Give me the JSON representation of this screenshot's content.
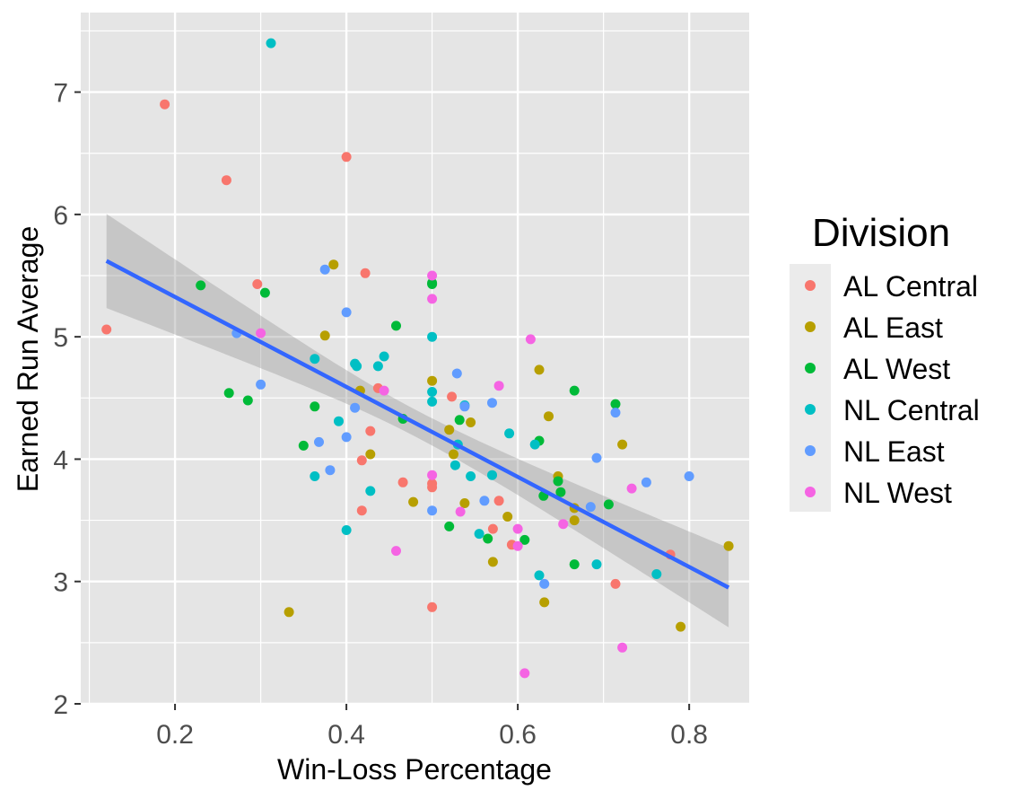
{
  "chart_data": {
    "type": "scatter",
    "xlabel": "Win-Loss Percentage",
    "ylabel": "Earned Run Average",
    "xlim": [
      0.09,
      0.87
    ],
    "ylim": [
      2.0,
      7.65
    ],
    "x_ticks": [
      0.2,
      0.4,
      0.6,
      0.8
    ],
    "x_tick_labels": [
      "0.2",
      "0.4",
      "0.6",
      "0.8"
    ],
    "y_ticks": [
      2,
      3,
      4,
      5,
      6,
      7
    ],
    "y_tick_labels": [
      "2",
      "3",
      "4",
      "5",
      "6",
      "7"
    ],
    "grid": true,
    "legend": {
      "title": "Division",
      "placement": "right"
    },
    "colors": {
      "panel": "#e5e5e5",
      "grid": "#ffffff",
      "trend_line": "#3366ff",
      "confidence_band": "#999999"
    },
    "series": [
      {
        "name": "AL Central",
        "color": "#f8766d",
        "points": [
          [
            0.12,
            5.06
          ],
          [
            0.188,
            6.9
          ],
          [
            0.26,
            6.28
          ],
          [
            0.296,
            5.43
          ],
          [
            0.4,
            6.47
          ],
          [
            0.422,
            5.52
          ],
          [
            0.418,
            3.99
          ],
          [
            0.428,
            4.23
          ],
          [
            0.437,
            4.58
          ],
          [
            0.418,
            3.58
          ],
          [
            0.466,
            3.81
          ],
          [
            0.5,
            3.8
          ],
          [
            0.5,
            3.77
          ],
          [
            0.5,
            2.79
          ],
          [
            0.523,
            4.51
          ],
          [
            0.571,
            3.43
          ],
          [
            0.578,
            3.66
          ],
          [
            0.593,
            3.3
          ],
          [
            0.714,
            2.98
          ],
          [
            0.778,
            3.22
          ]
        ]
      },
      {
        "name": "AL East",
        "color": "#b79f00",
        "points": [
          [
            0.333,
            2.75
          ],
          [
            0.375,
            5.01
          ],
          [
            0.385,
            5.59
          ],
          [
            0.416,
            4.56
          ],
          [
            0.428,
            4.04
          ],
          [
            0.478,
            3.65
          ],
          [
            0.5,
            4.64
          ],
          [
            0.52,
            4.24
          ],
          [
            0.525,
            4.04
          ],
          [
            0.538,
            3.64
          ],
          [
            0.545,
            4.3
          ],
          [
            0.571,
            3.16
          ],
          [
            0.588,
            3.53
          ],
          [
            0.625,
            4.73
          ],
          [
            0.631,
            2.83
          ],
          [
            0.636,
            4.35
          ],
          [
            0.647,
            3.86
          ],
          [
            0.666,
            3.5
          ],
          [
            0.666,
            3.6
          ],
          [
            0.722,
            4.12
          ],
          [
            0.79,
            2.63
          ],
          [
            0.846,
            3.29
          ]
        ]
      },
      {
        "name": "AL West",
        "color": "#00ba38",
        "points": [
          [
            0.23,
            5.42
          ],
          [
            0.263,
            4.54
          ],
          [
            0.285,
            4.48
          ],
          [
            0.305,
            5.36
          ],
          [
            0.35,
            4.11
          ],
          [
            0.363,
            4.43
          ],
          [
            0.458,
            5.09
          ],
          [
            0.466,
            4.33
          ],
          [
            0.5,
            5.44
          ],
          [
            0.5,
            5.43
          ],
          [
            0.52,
            3.45
          ],
          [
            0.532,
            4.32
          ],
          [
            0.565,
            3.35
          ],
          [
            0.608,
            3.34
          ],
          [
            0.625,
            4.15
          ],
          [
            0.63,
            3.7
          ],
          [
            0.647,
            3.82
          ],
          [
            0.65,
            3.73
          ],
          [
            0.666,
            3.14
          ],
          [
            0.666,
            4.56
          ],
          [
            0.706,
            3.63
          ],
          [
            0.714,
            4.45
          ]
        ]
      },
      {
        "name": "NL Central",
        "color": "#00bfc4",
        "points": [
          [
            0.312,
            7.4
          ],
          [
            0.363,
            4.82
          ],
          [
            0.363,
            3.86
          ],
          [
            0.391,
            4.31
          ],
          [
            0.4,
            3.42
          ],
          [
            0.41,
            4.78
          ],
          [
            0.412,
            4.76
          ],
          [
            0.428,
            3.74
          ],
          [
            0.437,
            4.76
          ],
          [
            0.444,
            4.84
          ],
          [
            0.5,
            5.0
          ],
          [
            0.5,
            4.55
          ],
          [
            0.5,
            4.47
          ],
          [
            0.527,
            3.95
          ],
          [
            0.53,
            4.12
          ],
          [
            0.538,
            4.44
          ],
          [
            0.545,
            3.86
          ],
          [
            0.555,
            3.39
          ],
          [
            0.57,
            3.87
          ],
          [
            0.59,
            4.21
          ],
          [
            0.62,
            4.12
          ],
          [
            0.625,
            3.05
          ],
          [
            0.692,
            3.14
          ],
          [
            0.762,
            3.06
          ]
        ]
      },
      {
        "name": "NL East",
        "color": "#619cff",
        "points": [
          [
            0.272,
            5.03
          ],
          [
            0.3,
            4.61
          ],
          [
            0.368,
            4.14
          ],
          [
            0.375,
            5.55
          ],
          [
            0.381,
            3.91
          ],
          [
            0.4,
            5.2
          ],
          [
            0.4,
            4.18
          ],
          [
            0.41,
            4.42
          ],
          [
            0.5,
            3.58
          ],
          [
            0.529,
            4.7
          ],
          [
            0.538,
            4.43
          ],
          [
            0.561,
            3.66
          ],
          [
            0.57,
            4.46
          ],
          [
            0.631,
            2.98
          ],
          [
            0.685,
            3.61
          ],
          [
            0.692,
            4.01
          ],
          [
            0.714,
            4.38
          ],
          [
            0.75,
            3.81
          ],
          [
            0.8,
            3.86
          ]
        ]
      },
      {
        "name": "NL West",
        "color": "#f564e3",
        "points": [
          [
            0.3,
            5.03
          ],
          [
            0.444,
            4.56
          ],
          [
            0.458,
            3.25
          ],
          [
            0.5,
            5.5
          ],
          [
            0.5,
            5.31
          ],
          [
            0.5,
            3.87
          ],
          [
            0.533,
            3.57
          ],
          [
            0.578,
            4.6
          ],
          [
            0.6,
            3.29
          ],
          [
            0.6,
            3.43
          ],
          [
            0.608,
            2.25
          ],
          [
            0.615,
            4.98
          ],
          [
            0.653,
            3.47
          ],
          [
            0.722,
            2.46
          ],
          [
            0.733,
            3.76
          ]
        ]
      }
    ],
    "trend": {
      "method": "linear",
      "x": [
        0.12,
        0.846
      ],
      "y": [
        5.62,
        2.95
      ],
      "ci_lower": [
        5.24,
        2.63
      ],
      "ci_upper": [
        6.01,
        3.28
      ],
      "ci_mid_x": 0.48,
      "ci_mid_half_width": 0.11
    }
  }
}
